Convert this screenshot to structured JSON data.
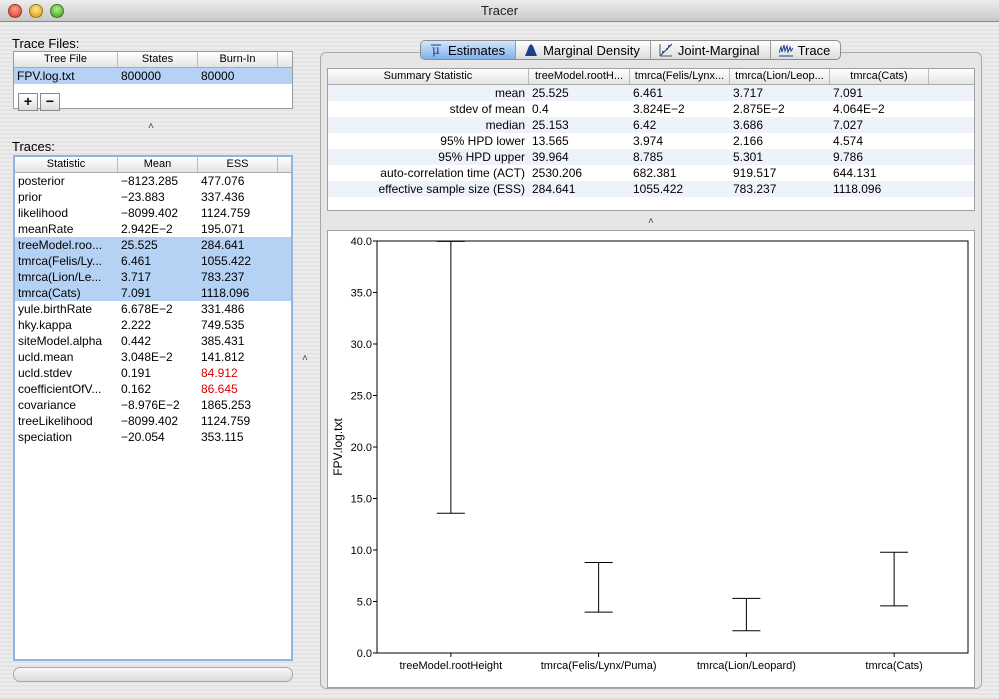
{
  "window": {
    "title": "Tracer"
  },
  "trace_files": {
    "label": "Trace Files:",
    "columns": [
      "Tree File",
      "States",
      "Burn-In"
    ],
    "rows": [
      {
        "file": "FPV.log.txt",
        "states": "800000",
        "burnin": "80000"
      }
    ],
    "add_label": "+",
    "remove_label": "−"
  },
  "traces": {
    "label": "Traces:",
    "columns": [
      "Statistic",
      "Mean",
      "ESS"
    ],
    "rows": [
      {
        "stat": "posterior",
        "mean": "−8123.285",
        "ess": "477.076",
        "selected": false,
        "low_ess": false
      },
      {
        "stat": "prior",
        "mean": "−23.883",
        "ess": "337.436",
        "selected": false,
        "low_ess": false
      },
      {
        "stat": "likelihood",
        "mean": "−8099.402",
        "ess": "1124.759",
        "selected": false,
        "low_ess": false
      },
      {
        "stat": "meanRate",
        "mean": "2.942E−2",
        "ess": "195.071",
        "selected": false,
        "low_ess": false
      },
      {
        "stat": "treeModel.roo...",
        "mean": "25.525",
        "ess": "284.641",
        "selected": true,
        "low_ess": false
      },
      {
        "stat": "tmrca(Felis/Ly...",
        "mean": "6.461",
        "ess": "1055.422",
        "selected": true,
        "low_ess": false
      },
      {
        "stat": "tmrca(Lion/Le...",
        "mean": "3.717",
        "ess": "783.237",
        "selected": true,
        "low_ess": false
      },
      {
        "stat": "tmrca(Cats)",
        "mean": "7.091",
        "ess": "1118.096",
        "selected": true,
        "low_ess": false
      },
      {
        "stat": "yule.birthRate",
        "mean": "6.678E−2",
        "ess": "331.486",
        "selected": false,
        "low_ess": false
      },
      {
        "stat": "hky.kappa",
        "mean": "2.222",
        "ess": "749.535",
        "selected": false,
        "low_ess": false
      },
      {
        "stat": "siteModel.alpha",
        "mean": "0.442",
        "ess": "385.431",
        "selected": false,
        "low_ess": false
      },
      {
        "stat": "ucld.mean",
        "mean": "3.048E−2",
        "ess": "141.812",
        "selected": false,
        "low_ess": false
      },
      {
        "stat": "ucld.stdev",
        "mean": "0.191",
        "ess": "84.912",
        "selected": false,
        "low_ess": true
      },
      {
        "stat": "coefficientOfV...",
        "mean": "0.162",
        "ess": "86.645",
        "selected": false,
        "low_ess": true
      },
      {
        "stat": "covariance",
        "mean": "−8.976E−2",
        "ess": "1865.253",
        "selected": false,
        "low_ess": false
      },
      {
        "stat": "treeLikelihood",
        "mean": "−8099.402",
        "ess": "1124.759",
        "selected": false,
        "low_ess": false
      },
      {
        "stat": "speciation",
        "mean": "−20.054",
        "ess": "353.115",
        "selected": false,
        "low_ess": false
      }
    ]
  },
  "tabs": [
    {
      "label": "Estimates",
      "icon": "mu-icon",
      "active": true
    },
    {
      "label": "Marginal Density",
      "icon": "density-icon",
      "active": false
    },
    {
      "label": "Joint-Marginal",
      "icon": "scatter-icon",
      "active": false
    },
    {
      "label": "Trace",
      "icon": "trace-icon",
      "active": false
    }
  ],
  "summary": {
    "columns": [
      "Summary Statistic",
      "treeModel.rootH...",
      "tmrca(Felis/Lynx...",
      "tmrca(Lion/Leop...",
      "tmrca(Cats)"
    ],
    "rows": [
      [
        "mean",
        "25.525",
        "6.461",
        "3.717",
        "7.091"
      ],
      [
        "stdev of mean",
        "0.4",
        "3.824E−2",
        "2.875E−2",
        "4.064E−2"
      ],
      [
        "median",
        "25.153",
        "6.42",
        "3.686",
        "7.027"
      ],
      [
        "95% HPD lower",
        "13.565",
        "3.974",
        "2.166",
        "4.574"
      ],
      [
        "95% HPD upper",
        "39.964",
        "8.785",
        "5.301",
        "9.786"
      ],
      [
        "auto-correlation time (ACT)",
        "2530.206",
        "682.381",
        "919.517",
        "644.131"
      ],
      [
        "effective sample size (ESS)",
        "284.641",
        "1055.422",
        "783.237",
        "1118.096"
      ]
    ]
  },
  "chart_data": {
    "type": "errorbar",
    "ylabel": "FPV.log.txt",
    "ylim": [
      0,
      40
    ],
    "yticks": [
      "0.0",
      "5.0",
      "10.0",
      "15.0",
      "20.0",
      "25.0",
      "30.0",
      "35.0",
      "40.0"
    ],
    "categories": [
      "treeModel.rootHeight",
      "tmrca(Felis/Lynx/Puma)",
      "tmrca(Lion/Leopard)",
      "tmrca(Cats)"
    ],
    "lower": [
      13.565,
      3.974,
      2.166,
      4.574
    ],
    "upper": [
      39.964,
      8.785,
      5.301,
      9.786
    ],
    "color": "#000000"
  },
  "colors": {
    "selection": "#b5d1f3",
    "low_ess": "#dd0000",
    "active_tab": "#7fb0ea"
  }
}
